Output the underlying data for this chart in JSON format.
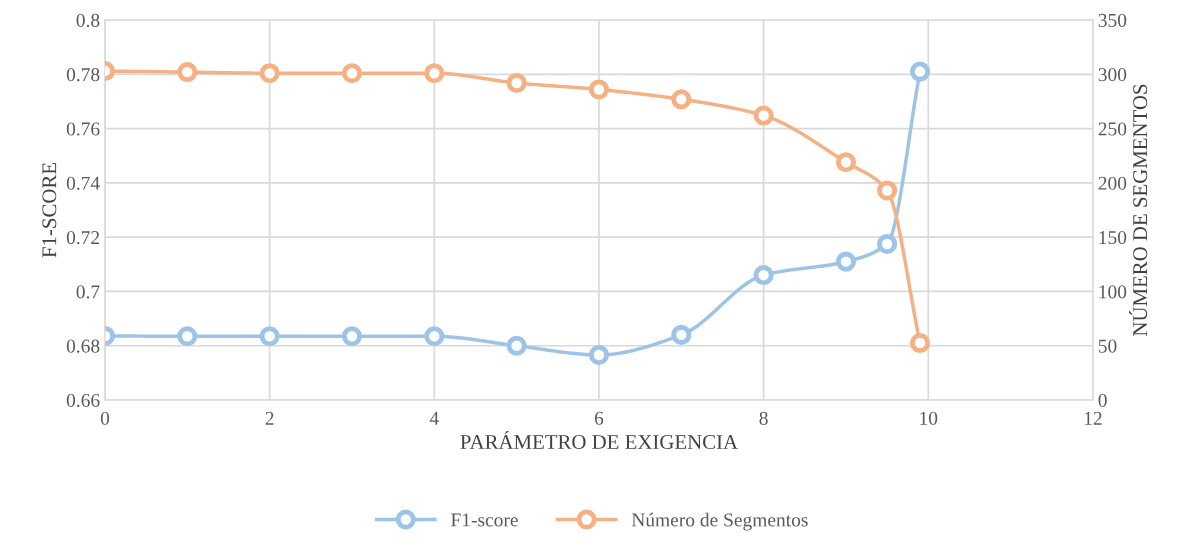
{
  "chart_data": {
    "type": "line",
    "xlabel": "PARÁMETRO DE EXIGENCIA",
    "ylabel": "F1-SCORE",
    "y2label": "NÚMERO DE SEGMENTOS",
    "x": [
      0,
      1,
      2,
      3,
      4,
      5,
      6,
      7,
      8,
      9,
      9.5,
      9.9
    ],
    "series": [
      {
        "name": "F1-score",
        "color": "#9dc3e6",
        "values": [
          0.6836,
          0.6835,
          0.6835,
          0.6835,
          0.6835,
          0.68,
          0.6766,
          0.684,
          0.706,
          0.711,
          0.7175,
          0.781
        ]
      },
      {
        "name": "Número de Segmentos",
        "color": "#f4b183",
        "axis": "y2",
        "values": [
          303,
          302,
          301,
          301,
          301,
          292,
          286,
          277,
          262,
          219,
          193,
          52.5
        ]
      }
    ],
    "xlim": [
      0,
      12
    ],
    "xticks": [
      0,
      2,
      4,
      6,
      8,
      10,
      12
    ],
    "ylim": [
      0.66,
      0.8
    ],
    "yticks": [
      0.66,
      0.68,
      {
        "value": 0.7,
        "label": "0.7"
      },
      0.72,
      0.74,
      0.76,
      0.78,
      {
        "value": 0.8,
        "label": "0.8"
      }
    ],
    "y2lim": [
      0,
      350
    ],
    "y2ticks": [
      0,
      50,
      100,
      150,
      200,
      250,
      300,
      350
    ],
    "grid": true,
    "legend": "bottom",
    "marker": "circle",
    "line_style": "solid"
  }
}
